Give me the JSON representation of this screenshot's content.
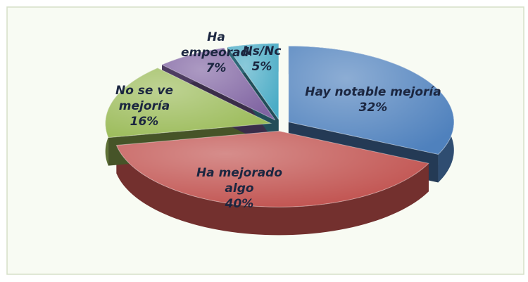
{
  "chart_data": {
    "type": "pie",
    "categories": [
      "Hay notable mejoría",
      "Ha mejorado algo",
      "No se ve mejoría",
      "Ha empeorado",
      "Ns/Nc"
    ],
    "values": [
      32,
      40,
      16,
      7,
      5
    ],
    "value_labels": [
      "32%",
      "40%",
      "16%",
      "7%",
      "5%"
    ],
    "colors": [
      "#4f81bd",
      "#c0504d",
      "#9bbb59",
      "#8064a2",
      "#4bacc6"
    ]
  }
}
